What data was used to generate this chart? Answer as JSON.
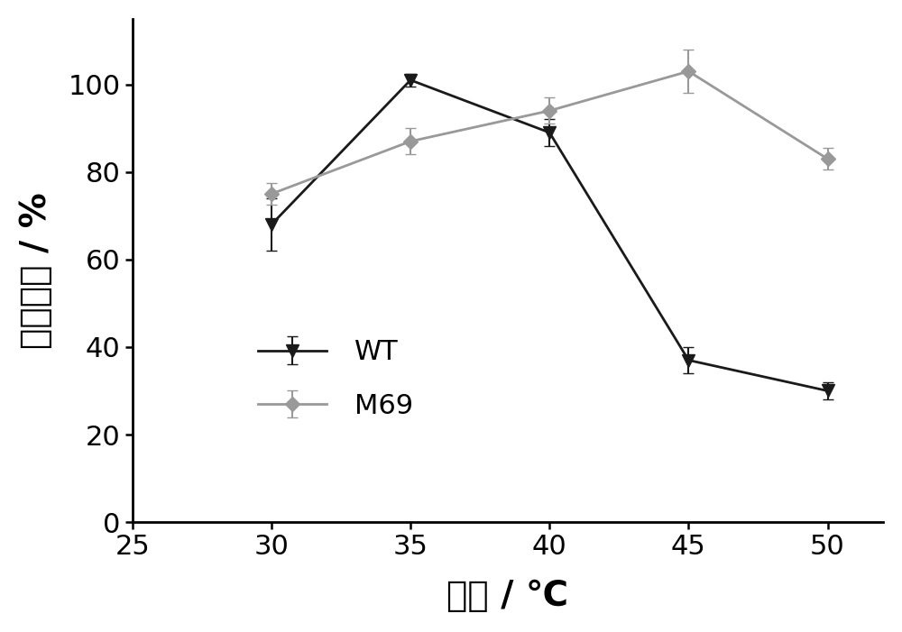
{
  "wt_x": [
    30,
    35,
    40,
    45,
    50
  ],
  "wt_y": [
    68,
    101,
    89,
    37,
    30
  ],
  "wt_yerr": [
    6,
    1.5,
    3,
    3,
    2
  ],
  "m69_x": [
    30,
    35,
    40,
    45,
    50
  ],
  "m69_y": [
    75,
    87,
    94,
    103,
    83
  ],
  "m69_yerr": [
    2.5,
    3,
    3,
    5,
    2.5
  ],
  "wt_color": "#1a1a1a",
  "m69_color": "#999999",
  "xlabel": "温度 / ℃",
  "ylabel": "相对酶活 / %",
  "xlim": [
    25,
    52
  ],
  "ylim": [
    0,
    115
  ],
  "xticks": [
    25,
    30,
    35,
    40,
    45,
    50
  ],
  "yticks": [
    0,
    20,
    40,
    60,
    80,
    100
  ],
  "legend_wt": "WT",
  "legend_m69": "M69",
  "linewidth": 2.0,
  "markersize": 10,
  "capsize": 4,
  "elinewidth": 1.5,
  "tick_labelsize": 22,
  "label_fontsize": 28,
  "legend_fontsize": 22
}
